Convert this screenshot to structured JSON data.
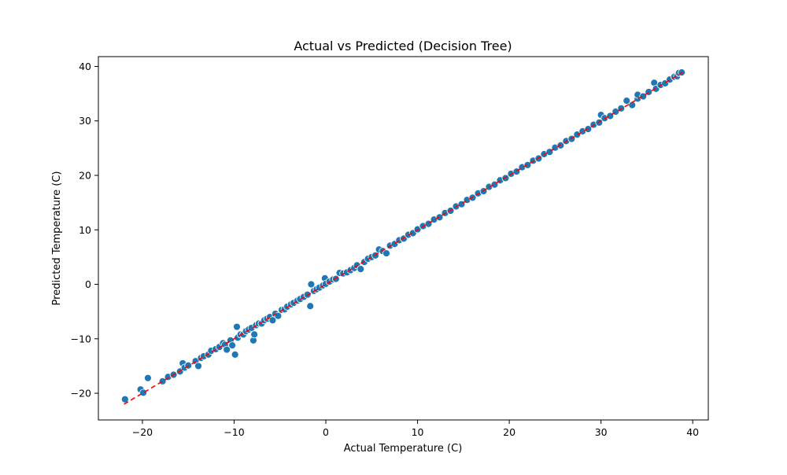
{
  "chart_data": {
    "type": "scatter",
    "title": "Actual vs Predicted (Decision Tree)",
    "xlabel": "Actual Temperature (C)",
    "ylabel": "Predicted Temperature (C)",
    "xlim": [
      -24.8,
      41.7
    ],
    "ylim": [
      -24.9,
      41.8
    ],
    "xticks": [
      -20,
      -10,
      0,
      10,
      20,
      30,
      40
    ],
    "yticks": [
      -20,
      -10,
      0,
      10,
      20,
      30,
      40
    ],
    "grid": false,
    "legend": "none",
    "series": [
      {
        "marker_color": "#1f77b4",
        "marker_edge": "#ffffff",
        "points": [
          [
            -21.9,
            -21.1
          ],
          [
            -20.2,
            -19.3
          ],
          [
            -19.9,
            -19.9
          ],
          [
            -19.4,
            -17.2
          ],
          [
            -17.8,
            -17.8
          ],
          [
            -17.2,
            -17.0
          ],
          [
            -16.6,
            -16.6
          ],
          [
            -15.9,
            -16.0
          ],
          [
            -15.6,
            -14.5
          ],
          [
            -15.4,
            -15.3
          ],
          [
            -15.0,
            -14.9
          ],
          [
            -14.2,
            -14.1
          ],
          [
            -13.9,
            -15.0
          ],
          [
            -13.6,
            -13.5
          ],
          [
            -13.3,
            -13.2
          ],
          [
            -12.8,
            -12.9
          ],
          [
            -12.5,
            -12.2
          ],
          [
            -12.0,
            -11.9
          ],
          [
            -11.6,
            -11.5
          ],
          [
            -11.2,
            -10.8
          ],
          [
            -11.0,
            -11.1
          ],
          [
            -10.8,
            -12.0
          ],
          [
            -10.4,
            -10.3
          ],
          [
            -10.2,
            -11.2
          ],
          [
            -9.9,
            -12.9
          ],
          [
            -9.7,
            -7.8
          ],
          [
            -9.6,
            -9.8
          ],
          [
            -9.3,
            -9.2
          ],
          [
            -9.0,
            -9.2
          ],
          [
            -8.7,
            -8.6
          ],
          [
            -8.4,
            -8.3
          ],
          [
            -8.1,
            -8.0
          ],
          [
            -7.9,
            -10.3
          ],
          [
            -7.8,
            -9.2
          ],
          [
            -7.6,
            -7.5
          ],
          [
            -7.3,
            -7.2
          ],
          [
            -7.0,
            -7.2
          ],
          [
            -6.7,
            -6.6
          ],
          [
            -6.4,
            -6.3
          ],
          [
            -6.1,
            -6.0
          ],
          [
            -5.8,
            -6.6
          ],
          [
            -5.5,
            -5.4
          ],
          [
            -5.2,
            -5.8
          ],
          [
            -4.8,
            -4.7
          ],
          [
            -4.5,
            -4.6
          ],
          [
            -4.2,
            -4.1
          ],
          [
            -3.8,
            -3.7
          ],
          [
            -3.5,
            -3.4
          ],
          [
            -3.1,
            -3.0
          ],
          [
            -2.8,
            -2.7
          ],
          [
            -2.4,
            -2.3
          ],
          [
            -2.0,
            -1.9
          ],
          [
            -1.7,
            -4.0
          ],
          [
            -1.6,
            0.0
          ],
          [
            -1.3,
            -1.2
          ],
          [
            -1.0,
            -0.9
          ],
          [
            -0.7,
            -0.6
          ],
          [
            -0.3,
            -0.2
          ],
          [
            -0.1,
            1.1
          ],
          [
            0.0,
            0.1
          ],
          [
            0.4,
            0.5
          ],
          [
            0.8,
            0.9
          ],
          [
            1.1,
            1.0
          ],
          [
            1.5,
            2.1
          ],
          [
            1.9,
            2.0
          ],
          [
            2.3,
            2.2
          ],
          [
            2.7,
            2.6
          ],
          [
            3.1,
            3.0
          ],
          [
            3.4,
            3.5
          ],
          [
            3.8,
            2.8
          ],
          [
            4.2,
            4.1
          ],
          [
            4.6,
            4.7
          ],
          [
            5.0,
            5.0
          ],
          [
            5.4,
            5.3
          ],
          [
            5.8,
            6.4
          ],
          [
            6.2,
            6.1
          ],
          [
            6.6,
            5.7
          ],
          [
            7.0,
            7.1
          ],
          [
            7.5,
            7.4
          ],
          [
            8.0,
            8.1
          ],
          [
            8.5,
            8.4
          ],
          [
            9.0,
            9.1
          ],
          [
            9.5,
            9.4
          ],
          [
            10.0,
            10.1
          ],
          [
            10.6,
            10.7
          ],
          [
            11.2,
            11.1
          ],
          [
            11.8,
            11.9
          ],
          [
            12.4,
            12.3
          ],
          [
            13.0,
            13.1
          ],
          [
            13.6,
            13.5
          ],
          [
            14.2,
            14.3
          ],
          [
            14.8,
            14.7
          ],
          [
            15.4,
            15.5
          ],
          [
            16.0,
            15.9
          ],
          [
            16.6,
            16.7
          ],
          [
            17.2,
            17.1
          ],
          [
            17.8,
            17.9
          ],
          [
            18.4,
            18.3
          ],
          [
            19.0,
            19.1
          ],
          [
            19.6,
            19.5
          ],
          [
            20.2,
            20.3
          ],
          [
            20.8,
            20.7
          ],
          [
            21.4,
            21.5
          ],
          [
            22.0,
            21.9
          ],
          [
            22.6,
            22.7
          ],
          [
            23.2,
            23.1
          ],
          [
            23.8,
            23.9
          ],
          [
            24.4,
            24.3
          ],
          [
            25.0,
            25.1
          ],
          [
            25.6,
            25.5
          ],
          [
            26.2,
            26.3
          ],
          [
            26.8,
            26.7
          ],
          [
            27.4,
            27.5
          ],
          [
            28.0,
            28.1
          ],
          [
            28.6,
            28.5
          ],
          [
            29.2,
            29.3
          ],
          [
            29.8,
            29.7
          ],
          [
            30.0,
            31.1
          ],
          [
            30.4,
            30.5
          ],
          [
            31.0,
            30.9
          ],
          [
            31.6,
            31.7
          ],
          [
            32.2,
            32.3
          ],
          [
            32.8,
            33.7
          ],
          [
            33.4,
            32.9
          ],
          [
            34.0,
            34.1
          ],
          [
            34.0,
            34.8
          ],
          [
            34.6,
            34.5
          ],
          [
            35.2,
            35.3
          ],
          [
            35.8,
            37.0
          ],
          [
            36.0,
            35.9
          ],
          [
            36.5,
            36.6
          ],
          [
            37.0,
            36.9
          ],
          [
            37.5,
            37.6
          ],
          [
            38.0,
            38.1
          ],
          [
            38.3,
            38.2
          ],
          [
            38.5,
            38.8
          ],
          [
            38.8,
            38.9
          ]
        ]
      }
    ],
    "reference_line": {
      "x": [
        -22,
        39
      ],
      "y": [
        -22,
        39
      ],
      "color": "#ff0000",
      "style": "dashed"
    }
  }
}
